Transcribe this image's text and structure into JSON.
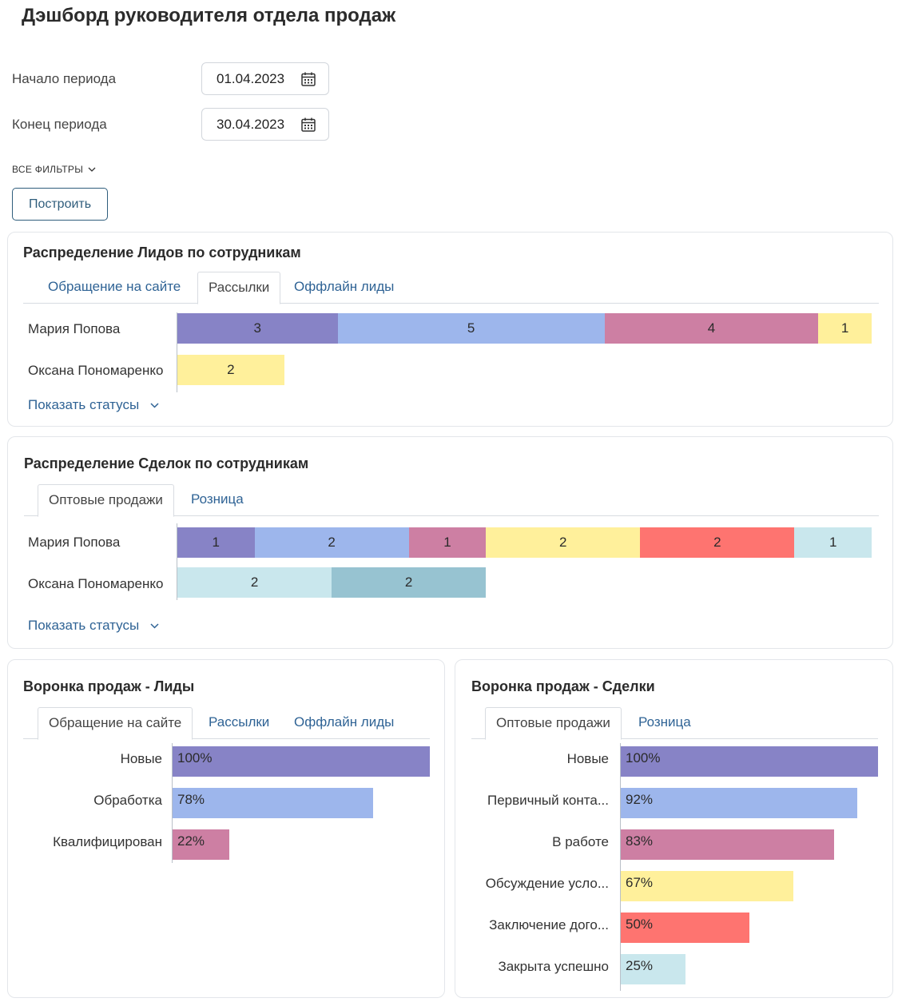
{
  "page": {
    "title": "Дэшборд руководителя отдела продаж"
  },
  "filters": {
    "start_label": "Начало периода",
    "start_value": "01.04.2023",
    "end_label": "Конец периода",
    "end_value": "30.04.2023",
    "all_filters": "ВСЕ ФИЛЬТРЫ",
    "build_button": "Построить"
  },
  "colors": {
    "c1": "#8783c6",
    "c2": "#9db6ec",
    "c3": "#cd7fa3",
    "c4": "#fff09b",
    "c5": "#fe7470",
    "c6": "#c9e7ed",
    "c7": "#97c3d1"
  },
  "leads_dist": {
    "title": "Распределение Лидов по сотрудникам",
    "tabs": [
      "Обращение на сайте",
      "Рассылки",
      "Оффлайн лиды"
    ],
    "active_tab": 1,
    "rows": [
      {
        "name": "Мария Попова",
        "segments": [
          3,
          5,
          4,
          1
        ],
        "colors": [
          "c1",
          "c2",
          "c3",
          "c4"
        ]
      },
      {
        "name": "Оксана Пономаренко",
        "segments": [
          2
        ],
        "colors": [
          "c4"
        ]
      }
    ],
    "max_total": 13,
    "show_statuses": "Показать статусы"
  },
  "deals_dist": {
    "title": "Распределение Сделок по сотрудникам",
    "tabs": [
      "Оптовые продажи",
      "Розница"
    ],
    "active_tab": 0,
    "rows": [
      {
        "name": "Мария Попова",
        "segments": [
          1,
          2,
          1,
          2,
          2,
          1
        ],
        "colors": [
          "c1",
          "c2",
          "c3",
          "c4",
          "c5",
          "c6"
        ]
      },
      {
        "name": "Оксана Пономаренко",
        "segments": [
          2,
          2
        ],
        "colors": [
          "c6",
          "c7"
        ]
      }
    ],
    "max_total": 9,
    "show_statuses": "Показать статусы"
  },
  "funnel_leads": {
    "title": "Воронка продаж - Лиды",
    "tabs": [
      "Обращение на сайте",
      "Рассылки",
      "Оффлайн лиды"
    ],
    "active_tab": 0,
    "stages": [
      {
        "label": "Новые",
        "percent": 100,
        "text": "100%",
        "color": "c1"
      },
      {
        "label": "Обработка",
        "percent": 78,
        "text": "78%",
        "color": "c2"
      },
      {
        "label": "Квалифицирован",
        "percent": 22,
        "text": "22%",
        "color": "c3"
      }
    ]
  },
  "funnel_deals": {
    "title": "Воронка продаж - Сделки",
    "tabs": [
      "Оптовые продажи",
      "Розница"
    ],
    "active_tab": 0,
    "stages": [
      {
        "label": "Новые",
        "percent": 100,
        "text": "100%",
        "color": "c1"
      },
      {
        "label": "Первичный конта...",
        "percent": 92,
        "text": "92%",
        "color": "c2"
      },
      {
        "label": "В работе",
        "percent": 83,
        "text": "83%",
        "color": "c3"
      },
      {
        "label": "Обсуждение усло...",
        "percent": 67,
        "text": "67%",
        "color": "c4"
      },
      {
        "label": "Заключение дого...",
        "percent": 50,
        "text": "50%",
        "color": "c5"
      },
      {
        "label": "Закрыта успешно",
        "percent": 25,
        "text": "25%",
        "color": "c6"
      }
    ]
  }
}
